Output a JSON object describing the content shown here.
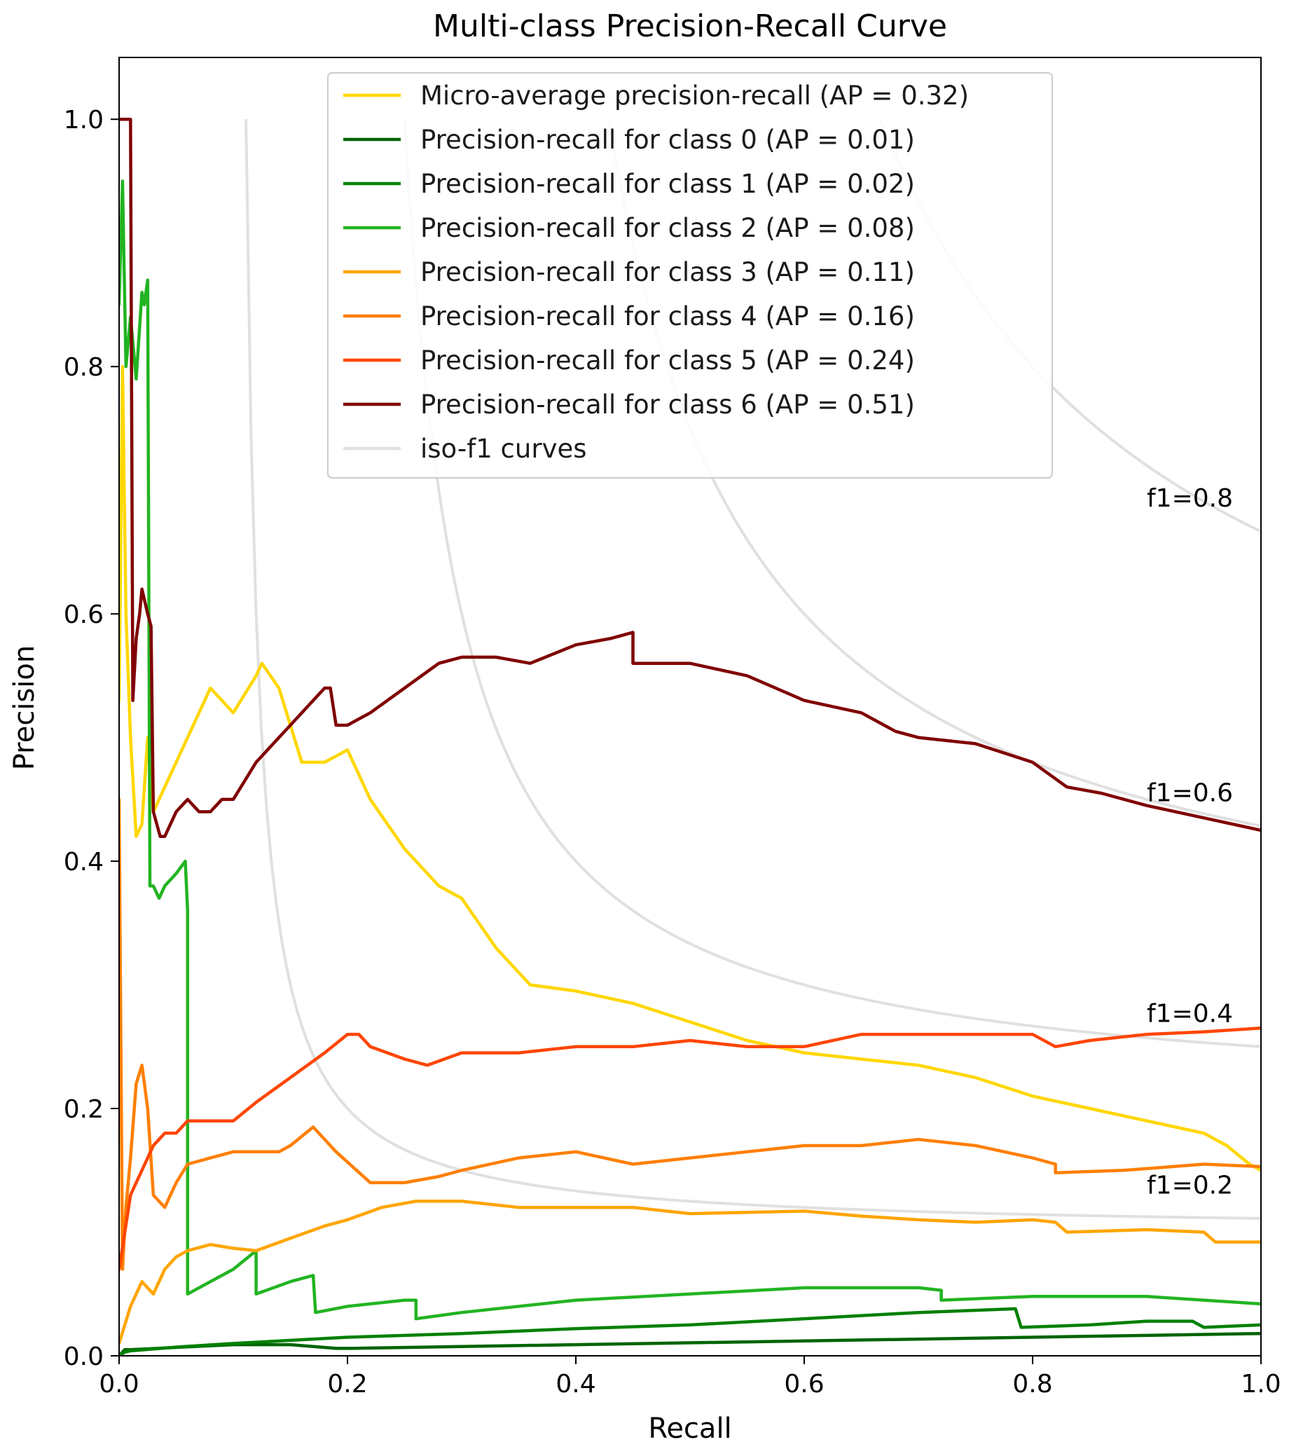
{
  "chart_data": {
    "type": "line",
    "title": "Multi-class Precision-Recall Curve",
    "xlabel": "Recall",
    "ylabel": "Precision",
    "xlim": [
      0.0,
      1.0
    ],
    "ylim": [
      0.0,
      1.05
    ],
    "xticks": [
      "0.0",
      "0.2",
      "0.4",
      "0.6",
      "0.8",
      "1.0"
    ],
    "xtick_values": [
      0.0,
      0.2,
      0.4,
      0.6,
      0.8,
      1.0
    ],
    "yticks": [
      "0.0",
      "0.2",
      "0.4",
      "0.6",
      "0.8",
      "1.0"
    ],
    "ytick_values": [
      0.0,
      0.2,
      0.4,
      0.6,
      0.8,
      1.0
    ],
    "grid": false,
    "legend_position": "top-center",
    "iso_f1": {
      "label": "iso-f1 curves",
      "color": "#e0e0e0",
      "values": [
        0.2,
        0.4,
        0.6,
        0.8
      ],
      "labels": [
        "f1=0.2",
        "f1=0.4",
        "f1=0.6",
        "f1=0.8"
      ]
    },
    "series": [
      {
        "name": "Micro-average precision-recall (AP = 0.32)",
        "color": "#ffd700",
        "x": [
          0.0,
          0.003,
          0.006,
          0.01,
          0.015,
          0.02,
          0.025,
          0.03,
          0.035,
          0.04,
          0.05,
          0.06,
          0.07,
          0.08,
          0.1,
          0.12,
          0.125,
          0.14,
          0.15,
          0.16,
          0.18,
          0.2,
          0.22,
          0.25,
          0.28,
          0.3,
          0.33,
          0.36,
          0.4,
          0.45,
          0.5,
          0.55,
          0.6,
          0.65,
          0.7,
          0.75,
          0.8,
          0.85,
          0.9,
          0.95,
          0.97,
          0.99,
          1.0
        ],
        "y": [
          0.53,
          0.8,
          0.6,
          0.5,
          0.42,
          0.43,
          0.5,
          0.44,
          0.45,
          0.46,
          0.48,
          0.5,
          0.52,
          0.54,
          0.52,
          0.55,
          0.56,
          0.54,
          0.51,
          0.48,
          0.48,
          0.49,
          0.45,
          0.41,
          0.38,
          0.37,
          0.33,
          0.3,
          0.295,
          0.285,
          0.27,
          0.255,
          0.245,
          0.24,
          0.235,
          0.225,
          0.21,
          0.2,
          0.19,
          0.18,
          0.17,
          0.155,
          0.15
        ]
      },
      {
        "name": "Precision-recall for class 0 (AP = 0.01)",
        "color": "#006400",
        "x": [
          0.0,
          0.005,
          0.01,
          0.1,
          0.15,
          0.19,
          0.2,
          0.4,
          0.6,
          0.8,
          1.0
        ],
        "y": [
          0.0,
          0.005,
          0.005,
          0.009,
          0.009,
          0.006,
          0.006,
          0.009,
          0.012,
          0.015,
          0.018
        ]
      },
      {
        "name": "Precision-recall for class 1 (AP = 0.02)",
        "color": "#008000",
        "x": [
          0.0,
          0.005,
          0.01,
          0.05,
          0.1,
          0.2,
          0.3,
          0.4,
          0.5,
          0.6,
          0.7,
          0.785,
          0.79,
          0.85,
          0.9,
          0.94,
          0.95,
          1.0
        ],
        "y": [
          0.0,
          0.003,
          0.004,
          0.007,
          0.01,
          0.015,
          0.018,
          0.022,
          0.025,
          0.03,
          0.035,
          0.038,
          0.023,
          0.025,
          0.028,
          0.028,
          0.023,
          0.025
        ]
      },
      {
        "name": "Precision-recall for class 2 (AP = 0.08)",
        "color": "#22b422",
        "x": [
          0.0,
          0.003,
          0.006,
          0.01,
          0.015,
          0.02,
          0.022,
          0.025,
          0.027,
          0.03,
          0.035,
          0.04,
          0.05,
          0.058,
          0.06,
          0.06,
          0.08,
          0.1,
          0.12,
          0.12,
          0.15,
          0.17,
          0.172,
          0.2,
          0.25,
          0.26,
          0.26,
          0.3,
          0.4,
          0.5,
          0.6,
          0.7,
          0.72,
          0.72,
          0.8,
          0.9,
          1.0
        ],
        "y": [
          0.85,
          0.95,
          0.8,
          0.84,
          0.79,
          0.86,
          0.85,
          0.87,
          0.38,
          0.38,
          0.37,
          0.38,
          0.39,
          0.4,
          0.36,
          0.05,
          0.06,
          0.07,
          0.085,
          0.05,
          0.06,
          0.065,
          0.035,
          0.04,
          0.045,
          0.045,
          0.03,
          0.035,
          0.045,
          0.05,
          0.055,
          0.055,
          0.053,
          0.045,
          0.048,
          0.048,
          0.042
        ]
      },
      {
        "name": "Precision-recall for class 3 (AP = 0.11)",
        "color": "#ffa500",
        "x": [
          0.0,
          0.01,
          0.02,
          0.03,
          0.04,
          0.05,
          0.06,
          0.08,
          0.1,
          0.12,
          0.15,
          0.18,
          0.2,
          0.23,
          0.26,
          0.3,
          0.35,
          0.4,
          0.45,
          0.5,
          0.6,
          0.65,
          0.7,
          0.75,
          0.8,
          0.82,
          0.83,
          0.9,
          0.95,
          0.96,
          1.0
        ],
        "y": [
          0.01,
          0.04,
          0.06,
          0.05,
          0.07,
          0.08,
          0.085,
          0.09,
          0.087,
          0.085,
          0.095,
          0.105,
          0.11,
          0.12,
          0.125,
          0.125,
          0.12,
          0.12,
          0.12,
          0.115,
          0.117,
          0.113,
          0.11,
          0.108,
          0.11,
          0.108,
          0.1,
          0.102,
          0.1,
          0.092,
          0.092
        ]
      },
      {
        "name": "Precision-recall for class 4 (AP = 0.16)",
        "color": "#ff7f00",
        "x": [
          0.0,
          0.003,
          0.006,
          0.01,
          0.015,
          0.02,
          0.025,
          0.03,
          0.04,
          0.05,
          0.06,
          0.08,
          0.1,
          0.12,
          0.14,
          0.15,
          0.17,
          0.19,
          0.22,
          0.25,
          0.28,
          0.3,
          0.35,
          0.4,
          0.45,
          0.5,
          0.55,
          0.6,
          0.65,
          0.7,
          0.75,
          0.8,
          0.82,
          0.82,
          0.88,
          0.95,
          1.0
        ],
        "y": [
          0.45,
          0.07,
          0.12,
          0.16,
          0.22,
          0.235,
          0.2,
          0.13,
          0.12,
          0.14,
          0.155,
          0.16,
          0.165,
          0.165,
          0.165,
          0.17,
          0.185,
          0.165,
          0.14,
          0.14,
          0.145,
          0.15,
          0.16,
          0.165,
          0.155,
          0.16,
          0.165,
          0.17,
          0.17,
          0.175,
          0.17,
          0.16,
          0.155,
          0.148,
          0.15,
          0.155,
          0.153
        ]
      },
      {
        "name": "Precision-recall for class 5 (AP = 0.24)",
        "color": "#ff4500",
        "x": [
          0.0,
          0.005,
          0.01,
          0.015,
          0.02,
          0.03,
          0.04,
          0.05,
          0.06,
          0.08,
          0.1,
          0.12,
          0.15,
          0.18,
          0.2,
          0.21,
          0.22,
          0.25,
          0.27,
          0.3,
          0.35,
          0.4,
          0.45,
          0.5,
          0.55,
          0.6,
          0.65,
          0.7,
          0.75,
          0.8,
          0.82,
          0.85,
          0.9,
          0.95,
          1.0
        ],
        "y": [
          0.07,
          0.1,
          0.13,
          0.14,
          0.15,
          0.17,
          0.18,
          0.18,
          0.19,
          0.19,
          0.19,
          0.205,
          0.225,
          0.245,
          0.26,
          0.26,
          0.25,
          0.24,
          0.235,
          0.245,
          0.245,
          0.25,
          0.25,
          0.255,
          0.25,
          0.25,
          0.26,
          0.26,
          0.26,
          0.26,
          0.25,
          0.255,
          0.26,
          0.262,
          0.265
        ]
      },
      {
        "name": "Precision-recall for class 6 (AP = 0.51)",
        "color": "#800000",
        "x": [
          0.0,
          0.003,
          0.005,
          0.008,
          0.01,
          0.012,
          0.015,
          0.018,
          0.02,
          0.025,
          0.028,
          0.03,
          0.033,
          0.036,
          0.04,
          0.05,
          0.06,
          0.07,
          0.08,
          0.09,
          0.1,
          0.12,
          0.15,
          0.18,
          0.185,
          0.19,
          0.2,
          0.22,
          0.25,
          0.28,
          0.3,
          0.33,
          0.36,
          0.4,
          0.43,
          0.45,
          0.45,
          0.5,
          0.55,
          0.6,
          0.65,
          0.68,
          0.7,
          0.75,
          0.8,
          0.83,
          0.86,
          0.9,
          0.95,
          1.0
        ],
        "y": [
          1.0,
          1.0,
          1.0,
          1.0,
          1.0,
          0.53,
          0.58,
          0.6,
          0.62,
          0.6,
          0.59,
          0.44,
          0.43,
          0.42,
          0.42,
          0.44,
          0.45,
          0.44,
          0.44,
          0.45,
          0.45,
          0.48,
          0.51,
          0.54,
          0.54,
          0.51,
          0.51,
          0.52,
          0.54,
          0.56,
          0.565,
          0.565,
          0.56,
          0.575,
          0.58,
          0.585,
          0.56,
          0.56,
          0.55,
          0.53,
          0.52,
          0.505,
          0.5,
          0.495,
          0.48,
          0.46,
          0.455,
          0.445,
          0.435,
          0.425
        ]
      }
    ]
  }
}
